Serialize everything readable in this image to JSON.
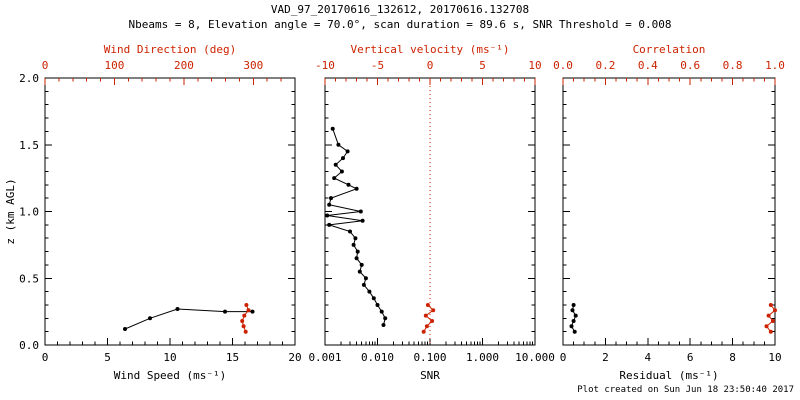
{
  "header": {
    "title": "VAD_97_20170616_132612, 20170616.132708",
    "subtitle": "Nbeams = 8, Elevation angle = 70.0°, scan duration = 89.6 s, SNR Threshold = 0.008"
  },
  "footer": {
    "created": "Plot created on Sun Jun 18 23:50:40 2017"
  },
  "colors": {
    "primary": "#000000",
    "secondary": "#cc2200",
    "background": "#ffffff"
  },
  "y_axis": {
    "label": "z (km AGL)",
    "range": [
      0,
      2
    ],
    "major_ticks": [
      0,
      0.5,
      1,
      1.5,
      2
    ],
    "tick_labels": [
      "0.0",
      "0.5",
      "1.0",
      "1.5",
      "2.0"
    ],
    "minor_subdiv": 5
  },
  "chart_data": [
    {
      "type": "line",
      "id": "wind-panel",
      "bottom_axis": {
        "label": "Wind Speed (ms⁻¹)",
        "scale": "linear",
        "range": [
          0,
          20
        ],
        "major_ticks": [
          0,
          5,
          10,
          15,
          20
        ],
        "tick_labels": [
          "0",
          "5",
          "10",
          "15",
          "20"
        ],
        "minor_subdiv": 5,
        "color": "primary"
      },
      "top_axis": {
        "label": "Wind Direction (deg)",
        "scale": "linear",
        "range": [
          0,
          360
        ],
        "major_ticks": [
          0,
          100,
          200,
          300
        ],
        "tick_labels": [
          "0",
          "100",
          "200",
          "300"
        ],
        "minor_subdiv": 5,
        "color": "secondary"
      },
      "series": [
        {
          "name": "wind_speed",
          "axis": "bottom",
          "color": "primary",
          "points": [
            [
              6.4,
              0.12
            ],
            [
              8.4,
              0.2
            ],
            [
              10.6,
              0.27
            ],
            [
              14.4,
              0.25
            ],
            [
              16.6,
              0.25
            ]
          ]
        },
        {
          "name": "wind_direction",
          "axis": "top",
          "color": "secondary",
          "points": [
            [
              289,
              0.1
            ],
            [
              286,
              0.14
            ],
            [
              284,
              0.18
            ],
            [
              287,
              0.22
            ],
            [
              293,
              0.26
            ],
            [
              290,
              0.3
            ]
          ]
        }
      ]
    },
    {
      "type": "line",
      "id": "snr-panel",
      "bottom_axis": {
        "label": "SNR",
        "scale": "log",
        "range": [
          0.001,
          10
        ],
        "major_ticks": [
          0.001,
          0.01,
          0.1,
          1,
          10
        ],
        "tick_labels": [
          "0.001",
          "0.010",
          "0.100",
          "1.000",
          "10.000"
        ],
        "color": "primary"
      },
      "top_axis": {
        "label": "Vertical velocity (ms⁻¹)",
        "scale": "linear",
        "range": [
          -10,
          10
        ],
        "major_ticks": [
          -10,
          -5,
          0,
          5,
          10
        ],
        "tick_labels": [
          "-10",
          "-5",
          "0",
          "5",
          "10"
        ],
        "minor_subdiv": 5,
        "color": "secondary"
      },
      "ref_line": {
        "axis": "top",
        "value": 0,
        "style": "dotted",
        "color": "secondary"
      },
      "series": [
        {
          "name": "snr",
          "axis": "bottom",
          "color": "primary",
          "points": [
            [
              0.0014,
              1.62
            ],
            [
              0.0018,
              1.5
            ],
            [
              0.0027,
              1.45
            ],
            [
              0.0022,
              1.4
            ],
            [
              0.0016,
              1.35
            ],
            [
              0.0021,
              1.3
            ],
            [
              0.0015,
              1.25
            ],
            [
              0.0028,
              1.2
            ],
            [
              0.004,
              1.17
            ],
            [
              0.0013,
              1.1
            ],
            [
              0.0012,
              1.05
            ],
            [
              0.0048,
              1.0
            ],
            [
              0.0011,
              0.97
            ],
            [
              0.0052,
              0.93
            ],
            [
              0.0012,
              0.9
            ],
            [
              0.003,
              0.85
            ],
            [
              0.0038,
              0.8
            ],
            [
              0.0035,
              0.75
            ],
            [
              0.0042,
              0.7
            ],
            [
              0.004,
              0.65
            ],
            [
              0.005,
              0.6
            ],
            [
              0.0046,
              0.55
            ],
            [
              0.006,
              0.5
            ],
            [
              0.0055,
              0.45
            ],
            [
              0.007,
              0.4
            ],
            [
              0.0085,
              0.35
            ],
            [
              0.01,
              0.3
            ],
            [
              0.012,
              0.25
            ],
            [
              0.014,
              0.2
            ],
            [
              0.013,
              0.15
            ]
          ]
        },
        {
          "name": "vertical_velocity",
          "axis": "top",
          "color": "secondary",
          "points": [
            [
              -0.6,
              0.1
            ],
            [
              -0.3,
              0.14
            ],
            [
              0.2,
              0.18
            ],
            [
              -0.4,
              0.22
            ],
            [
              0.3,
              0.26
            ],
            [
              -0.2,
              0.3
            ]
          ]
        }
      ]
    },
    {
      "type": "line",
      "id": "residual-panel",
      "bottom_axis": {
        "label": "Residual (ms⁻¹)",
        "scale": "linear",
        "range": [
          0,
          10
        ],
        "major_ticks": [
          0,
          2,
          4,
          6,
          8,
          10
        ],
        "tick_labels": [
          "0",
          "2",
          "4",
          "6",
          "8",
          "10"
        ],
        "minor_subdiv": 4,
        "color": "primary"
      },
      "top_axis": {
        "label": "Correlation",
        "scale": "linear",
        "range": [
          0,
          1
        ],
        "major_ticks": [
          0,
          0.2,
          0.4,
          0.6,
          0.8,
          1.0
        ],
        "tick_labels": [
          "0.0",
          "0.2",
          "0.4",
          "0.6",
          "0.8",
          "1.0"
        ],
        "minor_subdiv": 4,
        "color": "secondary"
      },
      "series": [
        {
          "name": "residual",
          "axis": "bottom",
          "color": "primary",
          "points": [
            [
              0.55,
              0.1
            ],
            [
              0.4,
              0.14
            ],
            [
              0.5,
              0.18
            ],
            [
              0.6,
              0.22
            ],
            [
              0.45,
              0.26
            ],
            [
              0.5,
              0.3
            ]
          ]
        },
        {
          "name": "correlation",
          "axis": "top",
          "color": "secondary",
          "points": [
            [
              0.98,
              0.1
            ],
            [
              0.96,
              0.14
            ],
            [
              0.99,
              0.18
            ],
            [
              0.97,
              0.22
            ],
            [
              1.0,
              0.26
            ],
            [
              0.98,
              0.3
            ]
          ]
        }
      ]
    }
  ]
}
